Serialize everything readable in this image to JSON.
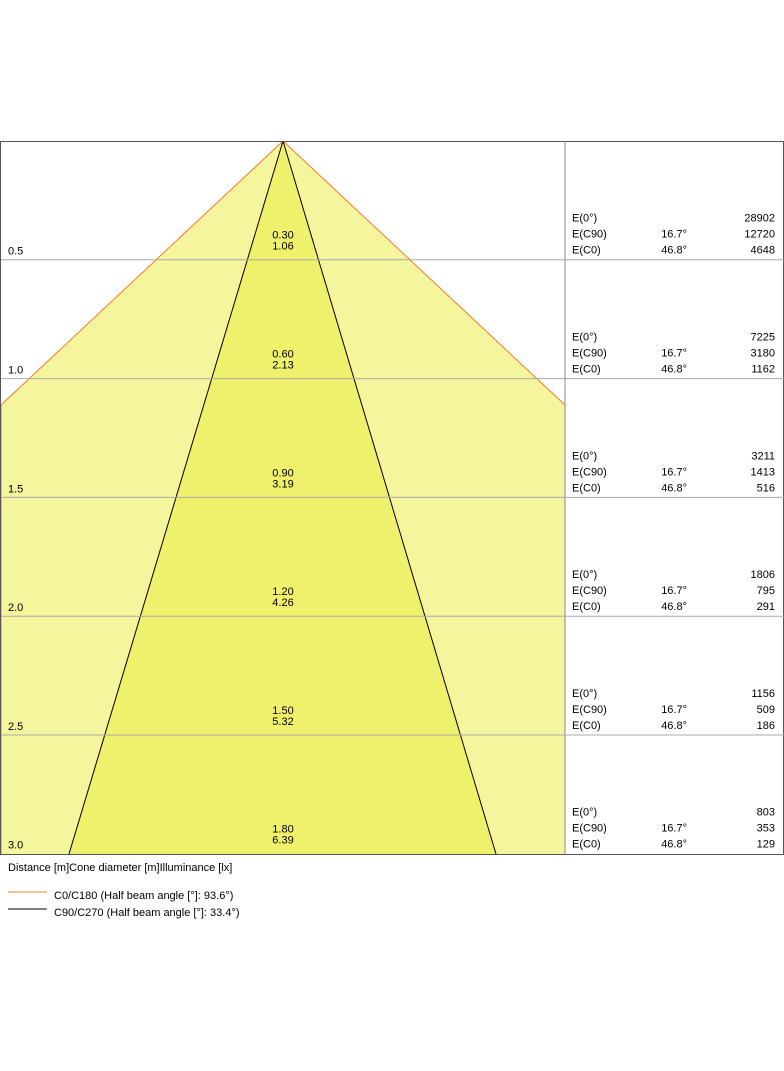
{
  "rows": [
    {
      "distance": "0.5",
      "diameter_c90": "0.30",
      "diameter_c0": "1.06",
      "illuminance": [
        {
          "label": "E(0°)",
          "value": "28902"
        },
        {
          "label": "E(C90)",
          "angle": "16.7°",
          "value": "12720"
        },
        {
          "label": "E(C0)",
          "angle": "46.8°",
          "value": "4648"
        }
      ]
    },
    {
      "distance": "1.0",
      "diameter_c90": "0.60",
      "diameter_c0": "2.13",
      "illuminance": [
        {
          "label": "E(0°)",
          "value": "7225"
        },
        {
          "label": "E(C90)",
          "angle": "16.7°",
          "value": "3180"
        },
        {
          "label": "E(C0)",
          "angle": "46.8°",
          "value": "1162"
        }
      ]
    },
    {
      "distance": "1.5",
      "diameter_c90": "0.90",
      "diameter_c0": "3.19",
      "illuminance": [
        {
          "label": "E(0°)",
          "value": "3211"
        },
        {
          "label": "E(C90)",
          "angle": "16.7°",
          "value": "1413"
        },
        {
          "label": "E(C0)",
          "angle": "46.8°",
          "value": "516"
        }
      ]
    },
    {
      "distance": "2.0",
      "diameter_c90": "1.20",
      "diameter_c0": "4.26",
      "illuminance": [
        {
          "label": "E(0°)",
          "value": "1806"
        },
        {
          "label": "E(C90)",
          "angle": "16.7°",
          "value": "795"
        },
        {
          "label": "E(C0)",
          "angle": "46.8°",
          "value": "291"
        }
      ]
    },
    {
      "distance": "2.5",
      "diameter_c90": "1.50",
      "diameter_c0": "5.32",
      "illuminance": [
        {
          "label": "E(0°)",
          "value": "1156"
        },
        {
          "label": "E(C90)",
          "angle": "16.7°",
          "value": "509"
        },
        {
          "label": "E(C0)",
          "angle": "46.8°",
          "value": "186"
        }
      ]
    },
    {
      "distance": "3.0",
      "diameter_c90": "1.80",
      "diameter_c0": "6.39",
      "illuminance": [
        {
          "label": "E(0°)",
          "value": "803"
        },
        {
          "label": "E(C90)",
          "angle": "16.7°",
          "value": "353"
        },
        {
          "label": "E(C0)",
          "angle": "46.8°",
          "value": "129"
        }
      ]
    }
  ],
  "caption": "Distance [m]Cone diameter [m]Illuminance [lx]",
  "legend": [
    {
      "label": "C0/C180 (Half beam angle [°]: 93.6°)",
      "color": "#f07c2c"
    },
    {
      "label": "C90/C270 (Half beam angle [°]: 33.4°)",
      "color": "#000000"
    }
  ]
}
